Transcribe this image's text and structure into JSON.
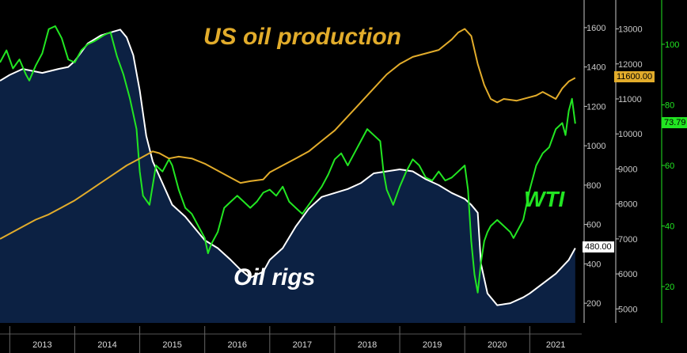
{
  "colors": {
    "background": "#000000",
    "rigs_fill": "#0c2143",
    "rigs_line": "#ffffff",
    "wti": "#22e622",
    "production": "#e2ac2b",
    "axis": "#c8c8c8"
  },
  "annotations": {
    "us_production": "US oil production",
    "wti": "WTI",
    "oil_rigs": "Oil rigs"
  },
  "chart_data": {
    "type": "line",
    "x_labels": [
      "2013",
      "2014",
      "2015",
      "2016",
      "2017",
      "2018",
      "2019",
      "2020",
      "2021"
    ],
    "x_range": [
      2012.85,
      2021.8
    ],
    "series": [
      {
        "name": "Oil rigs",
        "axis": "rigs",
        "style": "area",
        "color": "#ffffff",
        "last_value_label": "480.00",
        "x": [
          2012.85,
          2013.0,
          2013.2,
          2013.5,
          2013.75,
          2013.9,
          2014.0,
          2014.2,
          2014.4,
          2014.6,
          2014.7,
          2014.8,
          2014.9,
          2015.0,
          2015.1,
          2015.2,
          2015.35,
          2015.5,
          2015.7,
          2015.9,
          2016.0,
          2016.2,
          2016.4,
          2016.55,
          2016.7,
          2016.9,
          2017.0,
          2017.2,
          2017.4,
          2017.6,
          2017.8,
          2018.0,
          2018.2,
          2018.4,
          2018.6,
          2018.8,
          2019.0,
          2019.2,
          2019.4,
          2019.6,
          2019.8,
          2020.0,
          2020.1,
          2020.15,
          2020.2,
          2020.25,
          2020.35,
          2020.5,
          2020.6,
          2020.7,
          2020.9,
          2021.0,
          2021.2,
          2021.4,
          2021.6,
          2021.7
        ],
        "values": [
          1330,
          1360,
          1390,
          1370,
          1390,
          1400,
          1430,
          1520,
          1560,
          1580,
          1590,
          1550,
          1460,
          1280,
          1050,
          920,
          810,
          700,
          640,
          560,
          520,
          480,
          420,
          370,
          330,
          360,
          420,
          480,
          590,
          680,
          740,
          760,
          780,
          810,
          860,
          870,
          880,
          870,
          830,
          800,
          760,
          730,
          700,
          680,
          660,
          400,
          250,
          190,
          195,
          200,
          230,
          250,
          300,
          350,
          420,
          480
        ]
      },
      {
        "name": "WTI",
        "axis": "wti",
        "style": "line",
        "color": "#22e622",
        "last_value_label": "73.79",
        "x": [
          2012.85,
          2012.95,
          2013.05,
          2013.15,
          2013.25,
          2013.3,
          2013.4,
          2013.5,
          2013.6,
          2013.7,
          2013.8,
          2013.9,
          2014.0,
          2014.1,
          2014.2,
          2014.3,
          2014.45,
          2014.55,
          2014.65,
          2014.75,
          2014.85,
          2014.95,
          2015.0,
          2015.05,
          2015.15,
          2015.25,
          2015.35,
          2015.45,
          2015.5,
          2015.6,
          2015.7,
          2015.8,
          2015.9,
          2016.0,
          2016.05,
          2016.1,
          2016.2,
          2016.3,
          2016.4,
          2016.5,
          2016.6,
          2016.7,
          2016.8,
          2016.9,
          2017.0,
          2017.1,
          2017.2,
          2017.3,
          2017.4,
          2017.5,
          2017.6,
          2017.7,
          2017.8,
          2017.9,
          2018.0,
          2018.1,
          2018.2,
          2018.3,
          2018.4,
          2018.5,
          2018.6,
          2018.7,
          2018.75,
          2018.8,
          2018.9,
          2019.0,
          2019.1,
          2019.2,
          2019.3,
          2019.4,
          2019.5,
          2019.6,
          2019.7,
          2019.8,
          2019.9,
          2020.0,
          2020.05,
          2020.1,
          2020.15,
          2020.2,
          2020.25,
          2020.3,
          2020.35,
          2020.4,
          2020.5,
          2020.6,
          2020.7,
          2020.75,
          2020.8,
          2020.9,
          2021.0,
          2021.1,
          2021.2,
          2021.3,
          2021.4,
          2021.5,
          2021.55,
          2021.6,
          2021.65,
          2021.7
        ],
        "values": [
          94,
          98,
          92,
          95,
          90,
          88,
          93,
          97,
          105,
          106,
          102,
          95,
          94,
          98,
          100,
          101,
          103,
          104,
          96,
          90,
          82,
          72,
          58,
          50,
          47,
          60,
          58,
          62,
          60,
          52,
          46,
          44,
          40,
          36,
          31,
          34,
          38,
          46,
          48,
          50,
          48,
          46,
          48,
          51,
          52,
          50,
          53,
          48,
          46,
          44,
          47,
          50,
          53,
          57,
          62,
          64,
          60,
          64,
          68,
          72,
          70,
          68,
          58,
          52,
          47,
          53,
          58,
          62,
          60,
          56,
          55,
          58,
          55,
          56,
          58,
          60,
          52,
          35,
          24,
          18,
          28,
          35,
          38,
          40,
          42,
          40,
          38,
          36,
          38,
          42,
          52,
          60,
          64,
          66,
          72,
          74,
          70,
          78,
          82,
          73.79
        ]
      },
      {
        "name": "US oil production",
        "axis": "production",
        "style": "line",
        "color": "#e2ac2b",
        "last_value_label": "11600.00",
        "x": [
          2012.85,
          2013.0,
          2013.2,
          2013.4,
          2013.6,
          2013.8,
          2014.0,
          2014.2,
          2014.4,
          2014.6,
          2014.8,
          2015.0,
          2015.1,
          2015.2,
          2015.3,
          2015.45,
          2015.6,
          2015.8,
          2016.0,
          2016.2,
          2016.4,
          2016.55,
          2016.7,
          2016.9,
          2017.0,
          2017.2,
          2017.4,
          2017.6,
          2017.8,
          2018.0,
          2018.2,
          2018.4,
          2018.6,
          2018.8,
          2019.0,
          2019.2,
          2019.4,
          2019.6,
          2019.8,
          2019.9,
          2020.0,
          2020.1,
          2020.2,
          2020.3,
          2020.4,
          2020.5,
          2020.6,
          2020.8,
          2021.0,
          2021.1,
          2021.2,
          2021.4,
          2021.5,
          2021.6,
          2021.7
        ],
        "values": [
          7000,
          7150,
          7350,
          7550,
          7700,
          7900,
          8100,
          8350,
          8600,
          8850,
          9100,
          9300,
          9400,
          9500,
          9450,
          9300,
          9350,
          9300,
          9150,
          8950,
          8750,
          8600,
          8650,
          8700,
          8900,
          9100,
          9300,
          9500,
          9800,
          10100,
          10500,
          10900,
          11300,
          11700,
          12000,
          12200,
          12300,
          12400,
          12700,
          12900,
          13000,
          12800,
          12000,
          11400,
          11000,
          10900,
          11000,
          10950,
          11050,
          11100,
          11200,
          11000,
          11300,
          11500,
          11600
        ]
      }
    ],
    "axes": {
      "rigs": {
        "ticks": [
          200,
          400,
          600,
          800,
          1000,
          1200,
          1400,
          1600
        ],
        "range": [
          100,
          1700
        ],
        "color": "#c8c8c8"
      },
      "production": {
        "ticks": [
          5000,
          6000,
          7000,
          8000,
          9000,
          10000,
          11000,
          12000,
          13000
        ],
        "range": [
          4600,
          13600
        ],
        "color": "#c8c8c8"
      },
      "wti": {
        "ticks": [
          20,
          40,
          60,
          80,
          100
        ],
        "range": [
          8,
          112
        ],
        "color": "#22e622"
      }
    }
  }
}
